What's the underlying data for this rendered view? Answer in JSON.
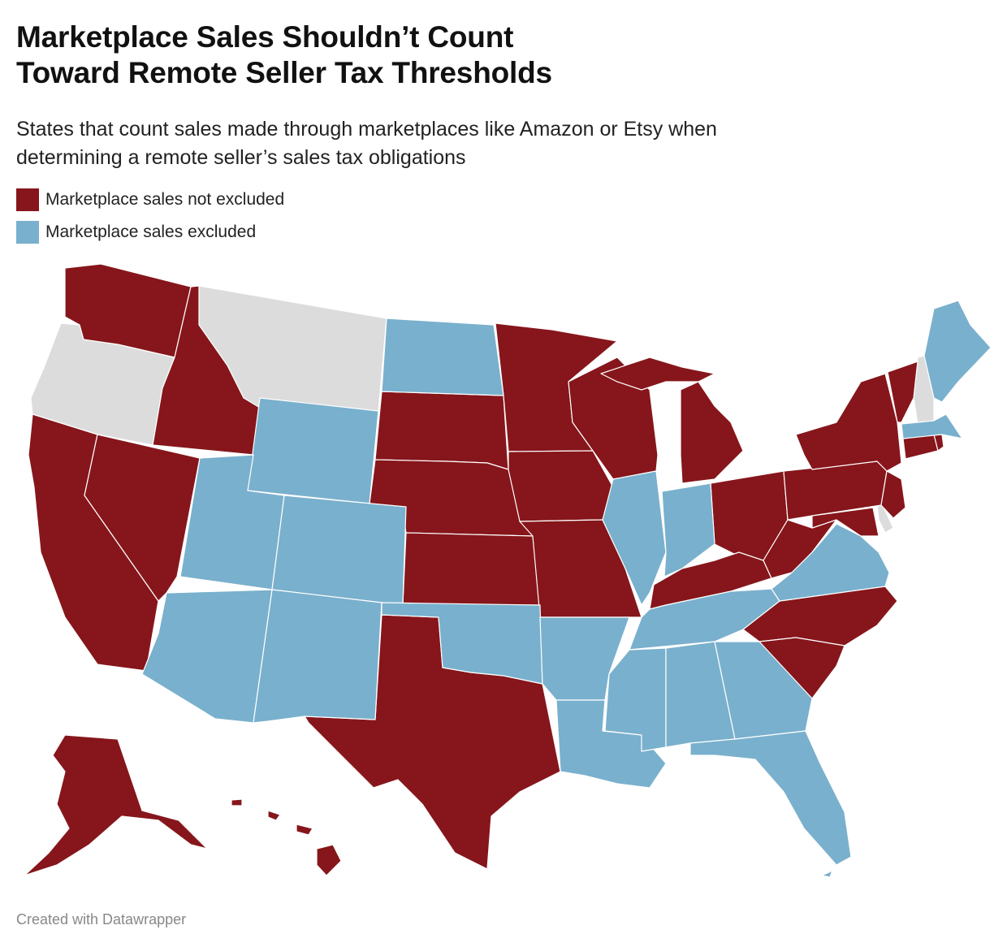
{
  "title_line1": "Marketplace Sales Shouldn’t Count",
  "title_line2": "Toward Remote Seller Tax Thresholds",
  "subtitle_line1": "States that count sales made through marketplaces like Amazon or Etsy when",
  "subtitle_line2": "determining a remote seller’s sales tax obligations",
  "legend": [
    {
      "label": "Marketplace sales not excluded",
      "color": "#86161b"
    },
    {
      "label": "Marketplace sales excluded",
      "color": "#79b0cd"
    }
  ],
  "no_data_color": "#dcdcdc",
  "footer": "Created with Datawrapper"
}
